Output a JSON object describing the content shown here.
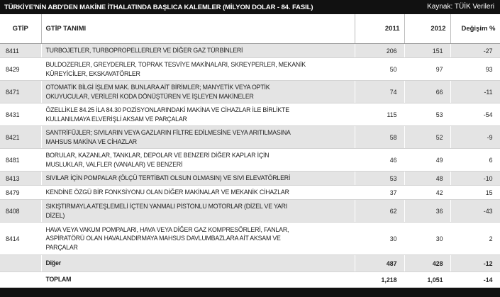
{
  "header": {
    "title": "TÜRKİYE'NİN ABD'DEN MAKİNE İTHALATINDA BAŞLICA KALEMLER (MİLYON DOLAR - 84. FASIL)",
    "source": "Kaynak: TÜİK Verileri"
  },
  "table": {
    "columns": [
      "GTİP",
      "GTİP TANIMI",
      "2011",
      "2012",
      "Değişim %"
    ],
    "rows": [
      {
        "code": "8411",
        "description": [
          "TURBOJETLER, TURBOPROPELLERLER VE DİĞER GAZ TÜRBİNLERİ"
        ],
        "values": [
          206,
          151,
          -27
        ]
      },
      {
        "code": "8429",
        "description": [
          "BULDOZERLER, GREYDERLER, TOPRAK TESVİYE MAKİNALARI, SKREYPERLER, MEKANİK",
          "KÜREYİCİLER, EKSKAVATÖRLER"
        ],
        "values": [
          50,
          97,
          93
        ]
      },
      {
        "code": "8471",
        "description": [
          "OTOMATİK BİLGİ İŞLEM MAK. BUNLARA AİT BİRİMLER; MANYETİK VEYA OPTİK",
          "OKUYUCULAR, VERİLERİ KODA DÖNÜŞTÜREN VE İŞLEYEN MAKİNELER"
        ],
        "values": [
          74,
          66,
          -11
        ]
      },
      {
        "code": "8431",
        "description": [
          "ÖZELLİKLE 84.25 İLA 84.30 POZİSYONLARINDAKİ MAKİNA VE CİHAZLAR İLE BİRLİKTE",
          "KULLANILMAYA ELVERİŞLİ AKSAM VE PARÇALAR"
        ],
        "values": [
          115,
          53,
          -54
        ]
      },
      {
        "code": "8421",
        "description": [
          "SANTRİFÜJLER; SIVILARIN VEYA GAZLARIN FİLTRE EDİLMESİNE VEYA ARITILMASINA",
          "MAHSUS MAKİNA VE CİHAZLAR"
        ],
        "values": [
          58,
          52,
          -9
        ]
      },
      {
        "code": "8481",
        "description": [
          "BORULAR, KAZANLAR, TANKLAR, DEPOLAR VE BENZERİ DİĞER KAPLAR İÇİN",
          "MUSLUKLAR, VALFLER (VANALAR) VE BENZERİ"
        ],
        "values": [
          46,
          49,
          6
        ]
      },
      {
        "code": "8413",
        "description": [
          "SIVILAR İÇİN POMPALAR (ÖLÇÜ TERTİBATI OLSUN OLMASIN) VE SIVI ELEVATÖRLERİ"
        ],
        "values": [
          53,
          48,
          -10
        ]
      },
      {
        "code": "8479",
        "description": [
          "KENDİNE ÖZGÜ BİR FONKSİYONU OLAN DİĞER MAKİNALAR VE MEKANİK CİHAZLAR"
        ],
        "values": [
          37,
          42,
          15
        ]
      },
      {
        "code": "8408",
        "description": [
          "SIKIŞTIRMAYLA ATEŞLEMELİ İÇTEN YANMALI PİSTONLU MOTORLAR (DİZEL VE YARI",
          "DİZEL)"
        ],
        "values": [
          62,
          36,
          -43
        ]
      },
      {
        "code": "8414",
        "description": [
          "HAVA VEYA VAKUM POMPALARI, HAVA VEYA DİĞER GAZ KOMPRESÖRLERİ, FANLAR,",
          "ASPİRATÖRÜ OLAN HAVALANDIRMAYA MAHSUS DAVLUMBAZLARA AİT AKSAM VE",
          "PARÇALAR"
        ],
        "values": [
          30,
          30,
          2
        ]
      },
      {
        "description": [
          "Diğer"
        ],
        "values": [
          487,
          428,
          -12
        ],
        "bold": true
      },
      {
        "description": [
          "TOPLAM"
        ],
        "values": [
          "1,218",
          "1,051",
          -14
        ],
        "bold": true
      }
    ]
  }
}
